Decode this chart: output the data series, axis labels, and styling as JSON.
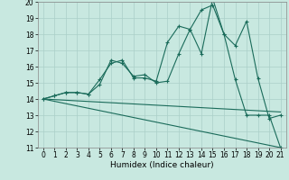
{
  "xlabel": "Humidex (Indice chaleur)",
  "xlim": [
    -0.5,
    21.5
  ],
  "ylim": [
    11,
    20
  ],
  "yticks": [
    11,
    12,
    13,
    14,
    15,
    16,
    17,
    18,
    19,
    20
  ],
  "xticks": [
    0,
    1,
    2,
    3,
    4,
    5,
    6,
    7,
    8,
    9,
    10,
    11,
    12,
    13,
    14,
    15,
    16,
    17,
    18,
    19,
    20,
    21
  ],
  "background_color": "#c8e8e0",
  "grid_color": "#aacfc8",
  "line_color": "#1a6b5a",
  "line1_x": [
    0,
    1,
    2,
    3,
    4,
    5,
    6,
    7,
    8,
    9,
    10,
    11,
    12,
    13,
    14,
    15,
    16,
    17,
    18,
    19,
    20,
    21
  ],
  "line1_y": [
    14.0,
    14.2,
    14.4,
    14.4,
    14.3,
    14.9,
    16.4,
    16.2,
    15.4,
    15.5,
    15.0,
    15.1,
    16.8,
    18.3,
    16.8,
    20.2,
    18.0,
    17.3,
    18.8,
    15.3,
    12.8,
    13.0
  ],
  "line2_x": [
    0,
    1,
    2,
    3,
    4,
    5,
    6,
    7,
    8,
    9,
    10,
    11,
    12,
    13,
    14,
    15,
    16,
    17,
    18,
    19,
    20,
    21
  ],
  "line2_y": [
    14.0,
    14.2,
    14.4,
    14.4,
    14.3,
    15.2,
    16.2,
    16.4,
    15.3,
    15.3,
    15.1,
    17.5,
    18.5,
    18.3,
    19.5,
    19.8,
    18.0,
    15.2,
    13.0,
    13.0,
    13.0,
    11.0
  ],
  "line3_x": [
    0,
    21
  ],
  "line3_y": [
    14.0,
    11.0
  ],
  "line4_x": [
    0,
    21
  ],
  "line4_y": [
    14.0,
    13.2
  ]
}
